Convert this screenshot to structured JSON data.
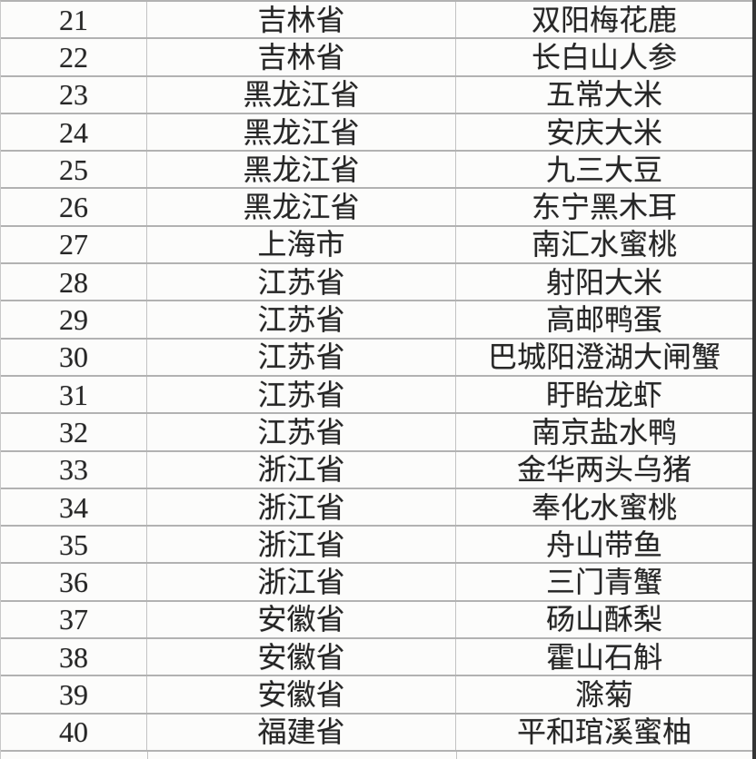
{
  "table": {
    "rows": [
      {
        "no": "21",
        "province": "吉林省",
        "product": "双阳梅花鹿"
      },
      {
        "no": "22",
        "province": "吉林省",
        "product": "长白山人参"
      },
      {
        "no": "23",
        "province": "黑龙江省",
        "product": "五常大米"
      },
      {
        "no": "24",
        "province": "黑龙江省",
        "product": "安庆大米"
      },
      {
        "no": "25",
        "province": "黑龙江省",
        "product": "九三大豆"
      },
      {
        "no": "26",
        "province": "黑龙江省",
        "product": "东宁黑木耳"
      },
      {
        "no": "27",
        "province": "上海市",
        "product": "南汇水蜜桃"
      },
      {
        "no": "28",
        "province": "江苏省",
        "product": "射阳大米"
      },
      {
        "no": "29",
        "province": "江苏省",
        "product": "高邮鸭蛋"
      },
      {
        "no": "30",
        "province": "江苏省",
        "product": "巴城阳澄湖大闸蟹"
      },
      {
        "no": "31",
        "province": "江苏省",
        "product": "盱眙龙虾"
      },
      {
        "no": "32",
        "province": "江苏省",
        "product": "南京盐水鸭"
      },
      {
        "no": "33",
        "province": "浙江省",
        "product": "金华两头乌猪"
      },
      {
        "no": "34",
        "province": "浙江省",
        "product": "奉化水蜜桃"
      },
      {
        "no": "35",
        "province": "浙江省",
        "product": "舟山带鱼"
      },
      {
        "no": "36",
        "province": "浙江省",
        "product": "三门青蟹"
      },
      {
        "no": "37",
        "province": "安徽省",
        "product": "砀山酥梨"
      },
      {
        "no": "38",
        "province": "安徽省",
        "product": "霍山石斛"
      },
      {
        "no": "39",
        "province": "安徽省",
        "product": "滁菊"
      },
      {
        "no": "40",
        "province": "福建省",
        "product": "平和琯溪蜜柚"
      }
    ]
  },
  "colors": {
    "grid_line": "#b2b2b2",
    "cell_divider": "#c3c3c3",
    "text": "#262626",
    "cell_background": "#fcfcfb",
    "photo_edge_strip": "#353535"
  }
}
